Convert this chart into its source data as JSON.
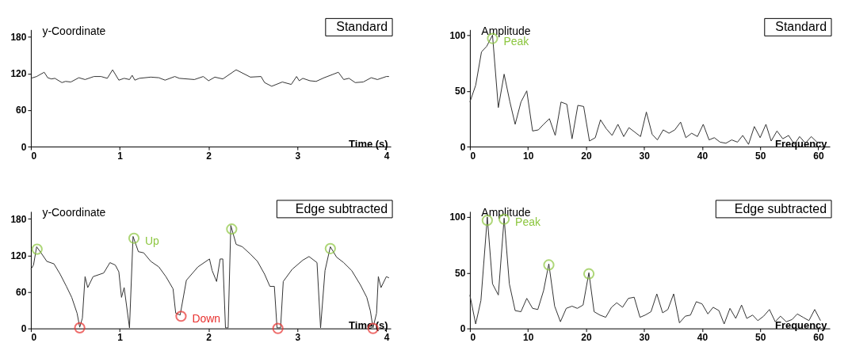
{
  "chart_data": [
    {
      "type": "line",
      "title": "Standard",
      "xlabel": "Time (s)",
      "ylabel": "y-Coordinate",
      "xlim": [
        0,
        4.05
      ],
      "ylim": [
        0,
        192
      ],
      "xticks": [
        0,
        1,
        2,
        3,
        4
      ],
      "yticks": [
        0,
        60,
        120,
        180
      ],
      "grid": false,
      "series": [
        {
          "type": "line",
          "color": "#333333",
          "x": [
            0,
            0.065,
            0.15,
            0.19,
            0.23,
            0.27,
            0.35,
            0.39,
            0.45,
            0.54,
            0.61,
            0.71,
            0.79,
            0.86,
            0.92,
            0.99,
            1.05,
            1.11,
            1.14,
            1.17,
            1.22,
            1.35,
            1.44,
            1.51,
            1.62,
            1.67,
            1.84,
            1.94,
            2.0,
            2.07,
            2.16,
            2.31,
            2.47,
            2.59,
            2.63,
            2.71,
            2.83,
            2.93,
            2.99,
            3.02,
            3.06,
            3.14,
            3.21,
            3.3,
            3.39,
            3.46,
            3.52,
            3.58,
            3.65,
            3.74,
            3.83,
            3.9,
            4.0,
            4.03
          ],
          "values": [
            112,
            115,
            122,
            113,
            111,
            112,
            105,
            107,
            106,
            113,
            110,
            115,
            115,
            112,
            126,
            109,
            112,
            110,
            117,
            109,
            112,
            114,
            113,
            109,
            115,
            112,
            110,
            115,
            108,
            114,
            111,
            126,
            114,
            115,
            105,
            99,
            106,
            102,
            115,
            108,
            112,
            108,
            107,
            113,
            118,
            122,
            110,
            112,
            105,
            106,
            113,
            110,
            115,
            115
          ]
        }
      ]
    },
    {
      "type": "line",
      "title": "Standard",
      "xlabel": "Frequency",
      "ylabel": "Amplitude",
      "xlim": [
        0,
        62
      ],
      "ylim": [
        0,
        105
      ],
      "xticks": [
        0,
        10,
        20,
        30,
        40,
        50,
        60
      ],
      "yticks": [
        0,
        50,
        100
      ],
      "grid": false,
      "annotations": [
        {
          "text": "Peak",
          "x": 3.9,
          "y": 97
        }
      ],
      "series": [
        {
          "type": "line",
          "color": "#333333",
          "x": [
            0,
            1,
            2,
            2.9,
            3.9,
            4.9,
            5.9,
            6.9,
            7.8,
            8.8,
            9.8,
            10.8,
            11.8,
            12.7,
            13.7,
            14.7,
            15.7,
            16.7,
            17.6,
            18.6,
            19.6,
            20.6,
            21.6,
            22.5,
            23.5,
            24.5,
            25.5,
            26.5,
            27.4,
            28.4,
            29.4,
            30.4,
            31.4,
            32.3,
            33.3,
            34.3,
            35.3,
            36.3,
            37.2,
            38.2,
            39.2,
            40.2,
            41.2,
            42.1,
            43.1,
            44.1,
            45.1,
            46.1,
            47,
            48,
            49,
            50,
            51,
            51.9,
            52.9,
            53.9,
            54.9,
            55.9,
            56.8,
            57.8,
            58.8,
            59.8,
            60.8
          ],
          "values": [
            40,
            55,
            85,
            90,
            100,
            35,
            65,
            40,
            20,
            40,
            50,
            14,
            15,
            20,
            25,
            10,
            40,
            38,
            7,
            37,
            36,
            5,
            8,
            24,
            16,
            10,
            20,
            9,
            17,
            13,
            9,
            31,
            11,
            6,
            15,
            12,
            15,
            22,
            8,
            12,
            9,
            20,
            6,
            8,
            4,
            3,
            6,
            4,
            10,
            2,
            18,
            8,
            20,
            5,
            14,
            7,
            10,
            2,
            9,
            3,
            9,
            4,
            4
          ]
        },
        {
          "type": "scatter",
          "marker": "circle",
          "color": "#8cc63f",
          "x": [
            3.9
          ],
          "values": [
            97
          ]
        }
      ]
    },
    {
      "type": "line",
      "title": "Edge subtracted",
      "xlabel": "Time (s)",
      "ylabel": "y-Coordinate",
      "xlim": [
        0,
        4.05
      ],
      "ylim": [
        0,
        192
      ],
      "xticks": [
        0,
        1,
        2,
        3,
        4
      ],
      "yticks": [
        0,
        60,
        120,
        180
      ],
      "grid": false,
      "annotations": [
        {
          "text": "Up",
          "x": 1.16,
          "y": 148
        },
        {
          "text": "Down",
          "x": 1.69,
          "y": 20
        }
      ],
      "series": [
        {
          "type": "line",
          "color": "#333333",
          "x": [
            0,
            0.03,
            0.065,
            0.11,
            0.18,
            0.26,
            0.33,
            0.4,
            0.46,
            0.52,
            0.55,
            0.58,
            0.61,
            0.64,
            0.7,
            0.82,
            0.89,
            0.95,
            0.99,
            1.02,
            1.05,
            1.11,
            1.15,
            1.21,
            1.27,
            1.35,
            1.44,
            1.52,
            1.6,
            1.63,
            1.68,
            1.75,
            1.88,
            2.01,
            2.04,
            2.09,
            2.13,
            2.16,
            2.19,
            2.22,
            2.25,
            2.31,
            2.38,
            2.47,
            2.55,
            2.63,
            2.69,
            2.74,
            2.77,
            2.81,
            2.84,
            2.94,
            3.06,
            3.13,
            3.22,
            3.26,
            3.31,
            3.37,
            3.44,
            3.52,
            3.61,
            3.71,
            3.78,
            3.82,
            3.85,
            3.89,
            3.91,
            3.94,
            4.0,
            4.03
          ],
          "values": [
            97,
            104,
            134,
            125,
            110,
            106,
            89,
            69,
            51,
            25,
            2,
            17,
            85,
            67,
            85,
            91,
            108,
            104,
            93,
            51,
            67,
            1,
            151,
            126,
            124,
            110,
            101,
            85,
            65,
            25,
            22,
            79,
            101,
            114,
            95,
            77,
            114,
            114,
            1,
            1,
            169,
            138,
            134,
            122,
            110,
            89,
            69,
            69,
            1,
            1,
            77,
            97,
            112,
            118,
            108,
            1,
            95,
            134,
            117,
            108,
            95,
            71,
            51,
            29,
            1,
            25,
            85,
            67,
            85,
            83
          ]
        },
        {
          "type": "scatter",
          "marker": "circle",
          "color": "#8cc63f",
          "x": [
            0.07,
            1.16,
            2.26,
            3.37
          ],
          "values": [
            130,
            148,
            163,
            131
          ]
        },
        {
          "type": "scatter",
          "marker": "circle",
          "color": "#e8312f",
          "x": [
            0.55,
            1.69,
            2.78,
            3.85
          ],
          "values": [
            1,
            20,
            0,
            0
          ]
        }
      ]
    },
    {
      "type": "line",
      "title": "Edge subtracted",
      "xlabel": "Frequency",
      "ylabel": "Amplitude",
      "xlim": [
        0,
        62
      ],
      "ylim": [
        0,
        105
      ],
      "xticks": [
        0,
        10,
        20,
        30,
        40,
        50,
        60
      ],
      "yticks": [
        0,
        50,
        100
      ],
      "grid": false,
      "annotations": [
        {
          "text": "Peak",
          "x": 5.9,
          "y": 98
        }
      ],
      "series": [
        {
          "type": "line",
          "color": "#333333",
          "x": [
            0,
            1,
            1.9,
            3,
            3.9,
            4.9,
            5.9,
            6.8,
            7.8,
            8.8,
            9.8,
            10.8,
            11.7,
            12.7,
            13.6,
            14.6,
            15.6,
            16.6,
            17.6,
            18.5,
            19.5,
            20.5,
            21.4,
            22.4,
            23.4,
            24.4,
            25.3,
            26.3,
            27.3,
            28.3,
            29.3,
            30.2,
            31.2,
            32.2,
            33.2,
            34.1,
            35.1,
            36.1,
            37.1,
            38,
            39,
            40,
            41,
            41.9,
            42.9,
            43.8,
            44.8,
            45.8,
            46.8,
            47.7,
            48.7,
            49.6,
            50.6,
            51.6,
            52.6,
            53.5,
            54.5,
            55.5,
            56.4,
            57.4,
            58.4,
            59.4,
            60.4
          ],
          "values": [
            30,
            4,
            25,
            100,
            40,
            30,
            99,
            40,
            16,
            15,
            27,
            18,
            17,
            34,
            58,
            20,
            6,
            18,
            20,
            18,
            21,
            50,
            15,
            12,
            10,
            19,
            23,
            19,
            27,
            28,
            10,
            12,
            15,
            31,
            14,
            17,
            31,
            5,
            11,
            12,
            24,
            22,
            13,
            19,
            16,
            4,
            18,
            9,
            21,
            9,
            12,
            7,
            11,
            17,
            6,
            11,
            6,
            8,
            13,
            10,
            7,
            17,
            7
          ]
        },
        {
          "type": "scatter",
          "marker": "circle",
          "color": "#8cc63f",
          "x": [
            3,
            5.9,
            13.6,
            20.5
          ],
          "values": [
            97,
            98,
            57,
            49
          ]
        }
      ]
    }
  ]
}
